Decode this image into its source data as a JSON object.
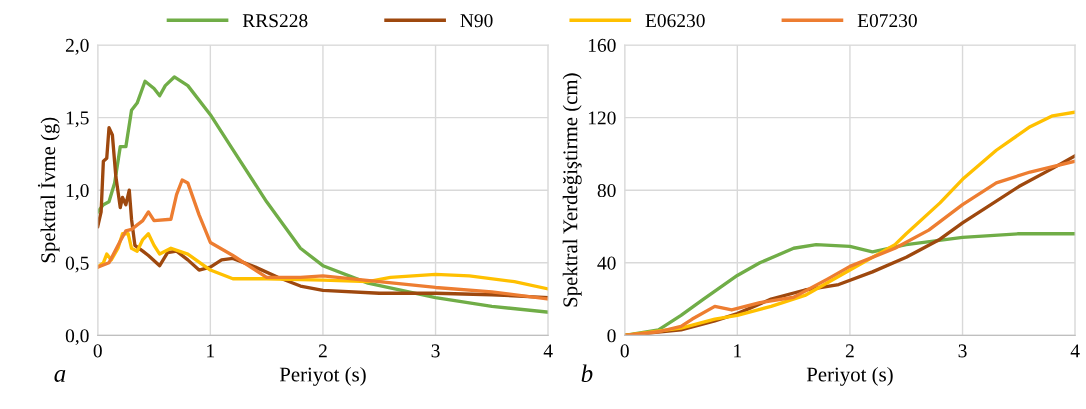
{
  "chart_data": [
    {
      "type": "line",
      "xlabel": "Periyot (s)",
      "ylabel": "Spektral İvme (g)",
      "annotations": [
        "a"
      ],
      "legend": "top",
      "grid": true,
      "xlim": [
        0,
        4
      ],
      "xticks": [
        0,
        1,
        2,
        3,
        4
      ],
      "ylim": [
        0,
        2
      ],
      "yticks": [
        {
          "value": 0,
          "label": "0,0"
        },
        {
          "value": 0.5,
          "label": "0,5"
        },
        {
          "value": 1,
          "label": "1,0"
        },
        {
          "value": 1.5,
          "label": "1,5"
        },
        {
          "value": 2,
          "label": "2,0"
        }
      ],
      "series": [
        {
          "name": "RRS228",
          "color": "#70ad47",
          "x": [
            0,
            0.05,
            0.1,
            0.15,
            0.2,
            0.25,
            0.3,
            0.35,
            0.42,
            0.5,
            0.55,
            0.6,
            0.68,
            0.8,
            1.0,
            1.2,
            1.5,
            1.8,
            2.0,
            2.4,
            3.0,
            3.5,
            4.0
          ],
          "values": [
            0.85,
            0.9,
            0.92,
            1.05,
            1.3,
            1.3,
            1.55,
            1.6,
            1.75,
            1.7,
            1.65,
            1.72,
            1.78,
            1.72,
            1.52,
            1.28,
            0.92,
            0.6,
            0.48,
            0.36,
            0.26,
            0.2,
            0.16
          ]
        },
        {
          "name": "N90",
          "color": "#9e480e",
          "x": [
            0,
            0.03,
            0.05,
            0.08,
            0.1,
            0.13,
            0.16,
            0.2,
            0.22,
            0.25,
            0.28,
            0.3,
            0.33,
            0.4,
            0.45,
            0.55,
            0.62,
            0.7,
            0.8,
            0.9,
            1.0,
            1.1,
            1.2,
            1.4,
            1.6,
            1.8,
            2.0,
            2.5,
            3.0,
            3.5,
            4.0
          ],
          "values": [
            0.75,
            0.85,
            1.2,
            1.22,
            1.43,
            1.38,
            1.1,
            0.88,
            0.95,
            0.9,
            1.0,
            0.8,
            0.62,
            0.58,
            0.55,
            0.48,
            0.57,
            0.58,
            0.52,
            0.45,
            0.47,
            0.52,
            0.53,
            0.47,
            0.4,
            0.34,
            0.31,
            0.29,
            0.29,
            0.28,
            0.26
          ]
        },
        {
          "name": "E06230",
          "color": "#ffc000",
          "x": [
            0,
            0.05,
            0.08,
            0.12,
            0.18,
            0.22,
            0.27,
            0.3,
            0.35,
            0.4,
            0.45,
            0.5,
            0.55,
            0.65,
            0.8,
            1.0,
            1.2,
            1.5,
            2.0,
            2.4,
            2.6,
            3.0,
            3.3,
            3.7,
            4.0
          ],
          "values": [
            0.47,
            0.5,
            0.56,
            0.52,
            0.6,
            0.7,
            0.7,
            0.6,
            0.58,
            0.66,
            0.7,
            0.62,
            0.56,
            0.6,
            0.56,
            0.45,
            0.39,
            0.39,
            0.38,
            0.37,
            0.4,
            0.42,
            0.41,
            0.37,
            0.32
          ]
        },
        {
          "name": "E07230",
          "color": "#ed7d31",
          "x": [
            0,
            0.1,
            0.2,
            0.25,
            0.3,
            0.4,
            0.45,
            0.5,
            0.65,
            0.7,
            0.75,
            0.8,
            0.9,
            1.0,
            1.2,
            1.5,
            1.8,
            2.0,
            2.5,
            3.0,
            3.5,
            4.0
          ],
          "values": [
            0.47,
            0.5,
            0.65,
            0.72,
            0.73,
            0.79,
            0.85,
            0.79,
            0.8,
            0.97,
            1.07,
            1.05,
            0.83,
            0.64,
            0.55,
            0.4,
            0.4,
            0.41,
            0.37,
            0.33,
            0.3,
            0.25
          ]
        }
      ]
    },
    {
      "type": "line",
      "xlabel": "Periyot (s)",
      "ylabel": "Spektral Yerdeğiştirme (cm)",
      "annotations": [
        "b"
      ],
      "grid": true,
      "xlim": [
        0,
        4
      ],
      "xticks": [
        0,
        1,
        2,
        3,
        4
      ],
      "ylim": [
        0,
        160
      ],
      "yticks": [
        0,
        40,
        80,
        120,
        160
      ],
      "series": [
        {
          "name": "RRS228",
          "color": "#70ad47",
          "x": [
            0,
            0.3,
            0.5,
            0.7,
            1.0,
            1.2,
            1.5,
            1.7,
            2.0,
            2.2,
            2.5,
            3.0,
            3.5,
            4.0
          ],
          "values": [
            0,
            3,
            11,
            20,
            33,
            40,
            48,
            50,
            49,
            46,
            50,
            54,
            56,
            56
          ]
        },
        {
          "name": "N90",
          "color": "#9e480e",
          "x": [
            0,
            0.5,
            0.8,
            1.0,
            1.3,
            1.6,
            1.9,
            2.2,
            2.5,
            2.8,
            3.0,
            3.2,
            3.5,
            3.8,
            4.0
          ],
          "values": [
            0,
            3,
            8,
            12,
            20,
            25,
            28,
            35,
            43,
            53,
            62,
            70,
            82,
            92,
            99
          ]
        },
        {
          "name": "E06230",
          "color": "#ffc000",
          "x": [
            0,
            0.5,
            0.8,
            1.0,
            1.3,
            1.6,
            2.0,
            2.4,
            2.5,
            2.8,
            3.0,
            3.3,
            3.6,
            3.8,
            4.0
          ],
          "values": [
            0,
            4,
            9,
            11,
            16,
            22,
            36,
            50,
            56,
            73,
            86,
            102,
            115,
            121,
            123
          ]
        },
        {
          "name": "E07230",
          "color": "#ed7d31",
          "x": [
            0,
            0.3,
            0.5,
            0.6,
            0.8,
            0.95,
            1.2,
            1.5,
            1.8,
            2.0,
            2.4,
            2.7,
            3.0,
            3.3,
            3.6,
            4.0
          ],
          "values": [
            0,
            2,
            5,
            9,
            16,
            14,
            18,
            21,
            31,
            38,
            48,
            58,
            72,
            84,
            90,
            96
          ]
        }
      ]
    }
  ]
}
